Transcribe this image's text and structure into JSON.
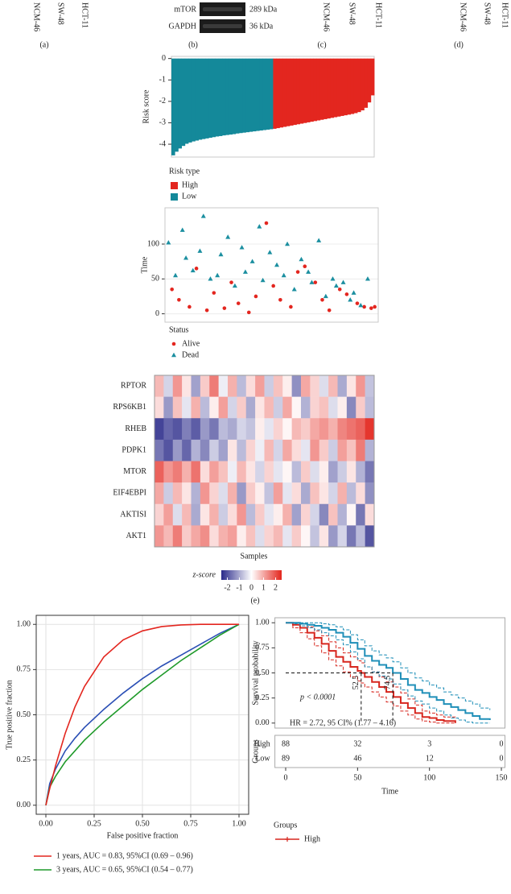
{
  "top_strip": {
    "panels": [
      {
        "label": "(a)",
        "cell_lines": [
          "NCM-46",
          "SW-48",
          "HCT-11"
        ]
      },
      {
        "label": "(b)",
        "blot": [
          {
            "protein": "mTOR",
            "size": "289 kDa"
          },
          {
            "protein": "GAPDH",
            "size": "36 kDa"
          }
        ]
      },
      {
        "label": "(c)",
        "cell_lines": [
          "NCM-46",
          "SW-48",
          "HCT-11"
        ]
      },
      {
        "label": "(d)",
        "cell_lines": [
          "NCM-46",
          "SW-48",
          "HCT-11"
        ]
      }
    ]
  },
  "panel_e_label": "(e)",
  "chart_data": [
    {
      "type": "bar",
      "y_label": "Risk score",
      "legend_title": "Risk type",
      "xlim": [
        0.5,
        60.5
      ],
      "ylim": [
        -4.6,
        0.1
      ],
      "yticks": [
        0,
        -1,
        -2,
        -3,
        -4
      ],
      "series": [
        {
          "name": "High",
          "color": "#e3261f",
          "x": [
            31,
            32,
            33,
            34,
            35,
            36,
            37,
            38,
            39,
            40,
            41,
            42,
            43,
            44,
            45,
            46,
            47,
            48,
            49,
            50,
            51,
            52,
            53,
            54,
            55,
            56,
            57,
            58,
            59,
            60
          ],
          "values": [
            -3.28,
            -3.25,
            -3.22,
            -3.19,
            -3.16,
            -3.13,
            -3.1,
            -3.07,
            -3.04,
            -3.01,
            -2.98,
            -2.95,
            -2.92,
            -2.89,
            -2.86,
            -2.83,
            -2.8,
            -2.77,
            -2.74,
            -2.71,
            -2.68,
            -2.65,
            -2.62,
            -2.59,
            -2.55,
            -2.5,
            -2.42,
            -2.3,
            -2.05,
            -1.72
          ]
        },
        {
          "name": "Low",
          "color": "#14899a",
          "x": [
            1,
            2,
            3,
            4,
            5,
            6,
            7,
            8,
            9,
            10,
            11,
            12,
            13,
            14,
            15,
            16,
            17,
            18,
            19,
            20,
            21,
            22,
            23,
            24,
            25,
            26,
            27,
            28,
            29,
            30
          ],
          "values": [
            -4.52,
            -4.35,
            -4.2,
            -4.08,
            -3.98,
            -3.92,
            -3.87,
            -3.83,
            -3.79,
            -3.76,
            -3.73,
            -3.7,
            -3.67,
            -3.64,
            -3.62,
            -3.59,
            -3.57,
            -3.55,
            -3.53,
            -3.5,
            -3.48,
            -3.46,
            -3.44,
            -3.42,
            -3.4,
            -3.38,
            -3.36,
            -3.34,
            -3.32,
            -3.3
          ]
        }
      ]
    },
    {
      "type": "scatter",
      "y_label": "Time",
      "legend_title": "Status",
      "grid": true,
      "xlim": [
        0,
        61
      ],
      "ylim": [
        -12,
        152
      ],
      "yticks": [
        0,
        50,
        100
      ],
      "series": [
        {
          "name": "Alive",
          "color": "#e3261f",
          "marker": "circle",
          "x": [
            2,
            4,
            7,
            9,
            12,
            14,
            17,
            19,
            21,
            24,
            26,
            29,
            31,
            33,
            36,
            38,
            40,
            43,
            45,
            47,
            50,
            52,
            55,
            57,
            59,
            60
          ],
          "values": [
            35,
            20,
            10,
            65,
            5,
            30,
            8,
            45,
            15,
            2,
            25,
            130,
            40,
            20,
            10,
            60,
            68,
            45,
            20,
            5,
            35,
            28,
            15,
            10,
            8,
            10
          ]
        },
        {
          "name": "Dead",
          "color": "#1b8fa0",
          "marker": "triangle",
          "x": [
            1,
            3,
            5,
            6,
            8,
            10,
            11,
            13,
            15,
            16,
            18,
            20,
            22,
            23,
            25,
            27,
            28,
            30,
            32,
            34,
            35,
            37,
            39,
            41,
            42,
            44,
            46,
            48,
            49,
            51,
            53,
            54,
            56,
            58
          ],
          "values": [
            102,
            55,
            120,
            80,
            62,
            90,
            140,
            50,
            55,
            85,
            110,
            40,
            95,
            60,
            75,
            125,
            48,
            88,
            70,
            55,
            100,
            35,
            78,
            60,
            45,
            105,
            25,
            50,
            40,
            45,
            20,
            30,
            12,
            50
          ]
        }
      ]
    },
    {
      "type": "heatmap",
      "x_label": "Samples",
      "colorbar_label": "z-score",
      "zlim": [
        -2.5,
        2.5
      ],
      "zticks": [
        -2,
        -1,
        0,
        1,
        2
      ],
      "colors": [
        "#2a2a8a",
        "#ffffff",
        "#e3251c"
      ],
      "rows": [
        "RPTOR",
        "RPS6KB1",
        "RHEB",
        "PDPK1",
        "MTOR",
        "EIF4EBPI",
        "AKTISI",
        "AKT1"
      ],
      "matrix": [
        [
          0.8,
          -0.5,
          1.2,
          0.3,
          -1.1,
          0.6,
          1.5,
          -0.2,
          0.9,
          -0.8,
          0.4,
          1.1,
          -0.6,
          0.7,
          0.2,
          -1.3,
          1.0,
          0.5,
          -0.4,
          0.8,
          -1.0,
          0.3,
          1.2,
          -0.7
        ],
        [
          0.4,
          -1.2,
          0.7,
          -0.3,
          0.9,
          -0.8,
          0.2,
          1.1,
          -0.5,
          0.6,
          -1.0,
          0.3,
          0.8,
          -0.6,
          1.0,
          0.1,
          -0.9,
          0.5,
          0.7,
          -0.4,
          0.2,
          -1.4,
          0.6,
          -0.8
        ],
        [
          -2.2,
          -1.8,
          -2.0,
          -1.5,
          -1.9,
          -1.2,
          -1.6,
          -0.8,
          -1.0,
          -0.5,
          -0.7,
          0.2,
          -0.3,
          0.5,
          0.1,
          0.8,
          0.6,
          1.0,
          1.2,
          0.9,
          1.4,
          1.6,
          1.8,
          2.3
        ],
        [
          -1.6,
          -2.0,
          -1.2,
          -1.8,
          -0.9,
          -1.4,
          -0.6,
          -1.1,
          0.3,
          -0.8,
          0.5,
          -0.2,
          0.8,
          -0.5,
          1.0,
          0.4,
          -0.3,
          1.2,
          0.6,
          -0.6,
          1.1,
          0.7,
          1.5,
          -0.9
        ],
        [
          1.8,
          1.2,
          1.5,
          0.9,
          1.6,
          0.4,
          1.1,
          0.7,
          -0.2,
          0.8,
          0.3,
          -0.5,
          0.5,
          -0.3,
          0.1,
          -0.8,
          0.6,
          -0.4,
          0.2,
          -1.1,
          -0.6,
          0.3,
          -0.9,
          -1.6
        ],
        [
          1.0,
          -0.6,
          0.8,
          0.3,
          -0.9,
          1.2,
          0.5,
          -0.4,
          0.9,
          -1.2,
          0.6,
          0.2,
          -0.7,
          1.1,
          -0.3,
          0.4,
          -1.0,
          0.7,
          0.3,
          -0.5,
          0.9,
          -0.8,
          0.4,
          -1.3
        ],
        [
          0.5,
          1.1,
          -0.4,
          0.8,
          -1.0,
          0.3,
          0.9,
          -0.6,
          0.4,
          1.2,
          -0.8,
          0.6,
          -0.3,
          0.2,
          0.9,
          -1.1,
          0.5,
          -0.5,
          -1.4,
          0.7,
          -0.9,
          0.1,
          -1.6,
          0.4
        ],
        [
          1.2,
          0.8,
          1.5,
          0.6,
          1.0,
          1.3,
          0.4,
          0.9,
          1.1,
          0.2,
          0.7,
          -0.4,
          0.5,
          0.8,
          -0.3,
          0.6,
          0.1,
          -0.7,
          0.3,
          -1.2,
          -0.5,
          -1.6,
          -0.8,
          -2.0
        ]
      ]
    },
    {
      "type": "line",
      "x_label": "False positive fraction",
      "y_label": "True positive fraction",
      "grid": true,
      "xlim": [
        -0.05,
        1.05
      ],
      "ylim": [
        -0.05,
        1.05
      ],
      "xticks": [
        {
          "value": 0,
          "label": "0.00"
        },
        {
          "value": 0.25,
          "label": "0.25"
        },
        {
          "value": 0.5,
          "label": "0.50"
        },
        {
          "value": 0.75,
          "label": "0.75"
        },
        {
          "value": 1,
          "label": "1.00"
        }
      ],
      "yticks": [
        {
          "value": 0,
          "label": "0.00"
        },
        {
          "value": 0.25,
          "label": "0.25"
        },
        {
          "value": 0.5,
          "label": "0.50"
        },
        {
          "value": 0.75,
          "label": "0.75"
        },
        {
          "value": 1,
          "label": "1.00"
        }
      ],
      "x": [
        0,
        0.02,
        0.05,
        0.1,
        0.15,
        0.2,
        0.3,
        0.4,
        0.5,
        0.6,
        0.7,
        0.8,
        0.9,
        1
      ],
      "series": [
        {
          "name": "1 years, AUC = 0.83, 95%CI (0.69 – 0.96)",
          "color": "#e3261f",
          "values": [
            0,
            0.092,
            0.218,
            0.397,
            0.542,
            0.657,
            0.82,
            0.914,
            0.964,
            0.988,
            0.997,
            1,
            1,
            1
          ]
        },
        {
          "name": "3 years, AUC = 0.65, 95%CI (0.54 – 0.77)",
          "color": "#1f9a2a",
          "values": [
            0,
            0.1,
            0.16,
            0.24,
            0.3,
            0.36,
            0.46,
            0.55,
            0.64,
            0.72,
            0.8,
            0.87,
            0.94,
            1
          ]
        },
        {
          "color": "#2b4fb5",
          "values": [
            0,
            0.12,
            0.2,
            0.3,
            0.37,
            0.43,
            0.53,
            0.62,
            0.7,
            0.77,
            0.83,
            0.89,
            0.95,
            1
          ]
        }
      ]
    },
    {
      "type": "survival",
      "x_label": "Time",
      "y_label": "Survival probability",
      "xlim": [
        -7.5,
        152.5
      ],
      "ylim": [
        -0.05,
        1.05
      ],
      "xticks": [
        0,
        50,
        100,
        150
      ],
      "yticks": [
        {
          "value": 0,
          "label": "0.00"
        },
        {
          "value": 0.25,
          "label": "0.25"
        },
        {
          "value": 0.5,
          "label": "0.50"
        },
        {
          "value": 0.75,
          "label": "0.75"
        },
        {
          "value": 1,
          "label": "1.00"
        }
      ],
      "p_label": "p < 0.0001",
      "hr_label": "HR = 2.72, 95 CI% (1.77 – 4.16)",
      "median_probability": 0.5,
      "medians": [
        52.5,
        74.5
      ],
      "risk_table_label": "Groups",
      "at_risk": [
        [
          88,
          32,
          3,
          0
        ],
        [
          89,
          46,
          12,
          0
        ]
      ],
      "legend_title": "Groups",
      "series": [
        {
          "name": "High",
          "color": "#d7261e",
          "x": [
            0,
            5,
            10,
            15,
            20,
            25,
            30,
            35,
            40,
            45,
            50,
            52.5,
            55,
            60,
            65,
            70,
            75,
            80,
            85,
            90,
            95,
            100,
            105,
            110,
            118
          ],
          "values": [
            1,
            0.98,
            0.95,
            0.9,
            0.85,
            0.79,
            0.72,
            0.66,
            0.61,
            0.56,
            0.52,
            0.5,
            0.46,
            0.41,
            0.36,
            0.31,
            0.26,
            0.2,
            0.15,
            0.1,
            0.06,
            0.05,
            0.03,
            0.02,
            0
          ],
          "upper": [
            1,
            1,
            0.99,
            0.96,
            0.92,
            0.87,
            0.81,
            0.75,
            0.7,
            0.66,
            0.62,
            0.6,
            0.56,
            0.51,
            0.46,
            0.41,
            0.36,
            0.3,
            0.24,
            0.18,
            0.12,
            0.1,
            0.08,
            0.06,
            0.04
          ],
          "lower": [
            1,
            0.95,
            0.9,
            0.84,
            0.77,
            0.7,
            0.63,
            0.57,
            0.51,
            0.46,
            0.42,
            0.4,
            0.36,
            0.31,
            0.26,
            0.21,
            0.17,
            0.12,
            0.08,
            0.04,
            0.02,
            0.01,
            0,
            0,
            0
          ]
        },
        {
          "name": "Low",
          "color": "#1f8fb8",
          "x": [
            0,
            5,
            10,
            15,
            20,
            25,
            30,
            35,
            40,
            45,
            50,
            55,
            60,
            65,
            70,
            74.5,
            80,
            85,
            90,
            95,
            100,
            105,
            110,
            115,
            120,
            125,
            130,
            135,
            142
          ],
          "values": [
            1,
            1,
            0.99,
            0.98,
            0.97,
            0.95,
            0.93,
            0.9,
            0.86,
            0.8,
            0.74,
            0.67,
            0.62,
            0.58,
            0.55,
            0.5,
            0.44,
            0.38,
            0.33,
            0.3,
            0.26,
            0.23,
            0.19,
            0.16,
            0.13,
            0.1,
            0.07,
            0.04,
            0.03
          ],
          "upper": [
            1,
            1,
            1,
            1,
            1,
            0.99,
            0.98,
            0.96,
            0.93,
            0.88,
            0.83,
            0.77,
            0.72,
            0.68,
            0.65,
            0.61,
            0.55,
            0.5,
            0.45,
            0.42,
            0.38,
            0.35,
            0.31,
            0.28,
            0.25,
            0.22,
            0.19,
            0.15,
            0.13
          ],
          "lower": [
            1,
            0.99,
            0.97,
            0.95,
            0.93,
            0.9,
            0.87,
            0.83,
            0.78,
            0.71,
            0.64,
            0.56,
            0.51,
            0.47,
            0.44,
            0.39,
            0.33,
            0.27,
            0.22,
            0.19,
            0.15,
            0.12,
            0.08,
            0.05,
            0.03,
            0.01,
            0,
            0,
            0
          ]
        }
      ]
    }
  ]
}
